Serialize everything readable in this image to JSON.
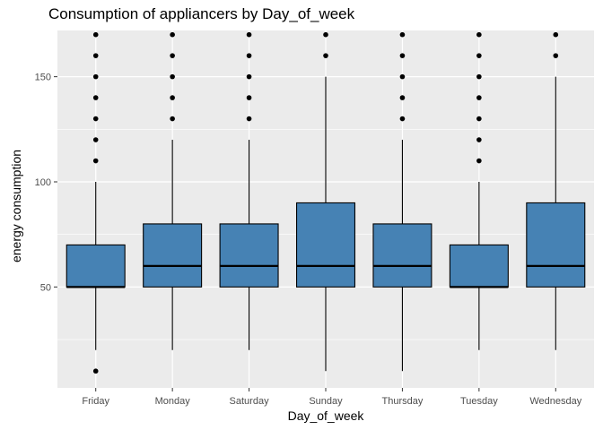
{
  "chart_data": {
    "type": "boxplot",
    "title": "Consumption of appliancers by Day_of_week",
    "xlabel": "Day_of_week",
    "ylabel": "energy consumption",
    "ylim": [
      2,
      172
    ],
    "yticks": [
      50,
      100,
      150
    ],
    "grid": true,
    "colors": {
      "panel": "#ebebeb",
      "grid": "#ffffff",
      "box_fill": "#4682b4",
      "line": "#000000"
    },
    "categories": [
      "Friday",
      "Monday",
      "Saturday",
      "Sunday",
      "Thursday",
      "Tuesday",
      "Wednesday"
    ],
    "boxes": [
      {
        "category": "Friday",
        "whisker_low": 20,
        "q1": 50,
        "median": 50,
        "q3": 70,
        "whisker_high": 100,
        "outliers": [
          10,
          110,
          120,
          130,
          140,
          150,
          160,
          170
        ]
      },
      {
        "category": "Monday",
        "whisker_low": 20,
        "q1": 50,
        "median": 60,
        "q3": 80,
        "whisker_high": 120,
        "outliers": [
          130,
          140,
          150,
          160,
          170
        ]
      },
      {
        "category": "Saturday",
        "whisker_low": 20,
        "q1": 50,
        "median": 60,
        "q3": 80,
        "whisker_high": 120,
        "outliers": [
          130,
          140,
          150,
          160,
          170
        ]
      },
      {
        "category": "Sunday",
        "whisker_low": 10,
        "q1": 50,
        "median": 60,
        "q3": 90,
        "whisker_high": 150,
        "outliers": [
          160,
          170
        ]
      },
      {
        "category": "Thursday",
        "whisker_low": 10,
        "q1": 50,
        "median": 60,
        "q3": 80,
        "whisker_high": 120,
        "outliers": [
          130,
          140,
          150,
          160,
          170
        ]
      },
      {
        "category": "Tuesday",
        "whisker_low": 20,
        "q1": 50,
        "median": 50,
        "q3": 70,
        "whisker_high": 100,
        "outliers": [
          110,
          120,
          130,
          140,
          150,
          160,
          170
        ]
      },
      {
        "category": "Wednesday",
        "whisker_low": 20,
        "q1": 50,
        "median": 60,
        "q3": 90,
        "whisker_high": 150,
        "outliers": [
          160,
          170
        ]
      }
    ]
  }
}
